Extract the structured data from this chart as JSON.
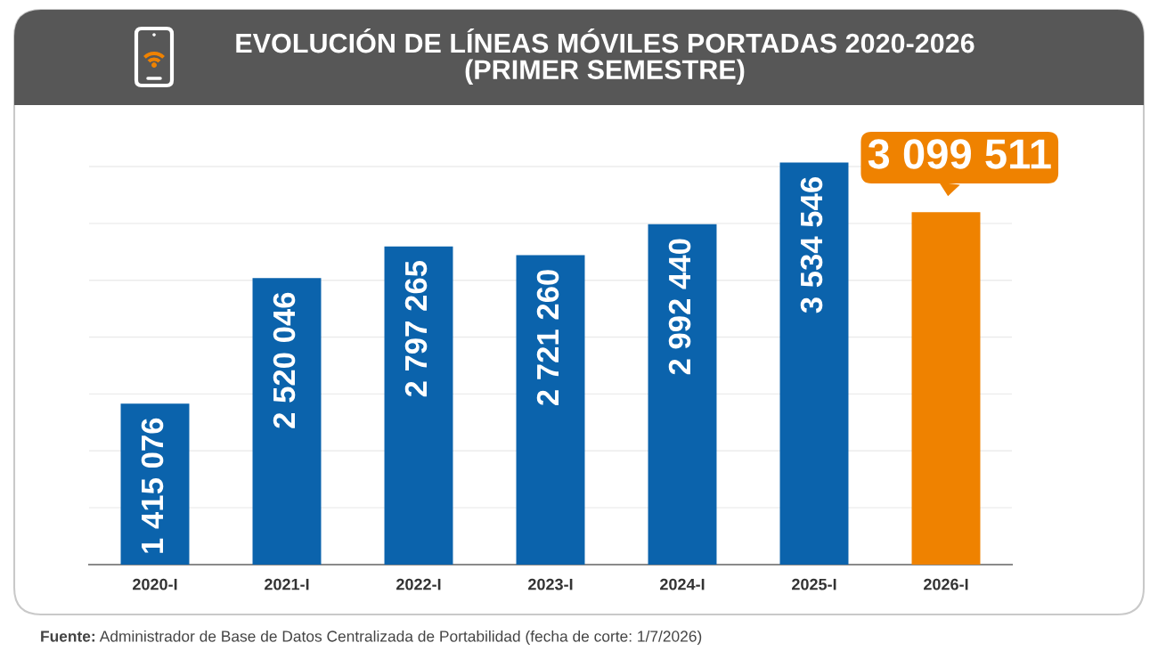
{
  "chart_data": {
    "type": "bar",
    "title": "EVOLUCIÓN DE LÍNEAS MÓVILES PORTADAS 2020-2026\n(PRIMER SEMESTRE)",
    "categories": [
      "2020-I",
      "2021-I",
      "2022-I",
      "2023-I",
      "2024-I",
      "2025-I",
      "2026-I"
    ],
    "values": [
      1415076,
      2520046,
      2797265,
      2721260,
      2992440,
      3534546,
      3099511
    ],
    "colors": [
      "#0b63ac",
      "#0b63ac",
      "#0b63ac",
      "#0b63ac",
      "#0b63ac",
      "#0b63ac",
      "#ef8200"
    ],
    "value_labels": [
      "1 415 076",
      "2 520 046",
      "2 797 265",
      "2 721 260",
      "2 992 440",
      "3 534 546",
      null
    ],
    "annotations": [
      {
        "text": "3 099 511",
        "x": "2026-I",
        "y": 3099511
      },
      "Fuente: Administrador de Base de Datos Centralizada de Portabilidad (fecha de corte: 1/7/2026)"
    ],
    "yticks": [
      {
        "value": 0,
        "label": null
      },
      {
        "value": 500000,
        "label": null
      },
      {
        "value": 1000000,
        "label": null
      },
      {
        "value": 1500000,
        "label": null
      },
      {
        "value": 2000000,
        "label": null
      },
      {
        "value": 2500000,
        "label": null
      },
      {
        "value": 3000000,
        "label": null
      },
      {
        "value": 3500000,
        "label": null
      }
    ],
    "grid": "y",
    "tick_labels": "x"
  }
}
